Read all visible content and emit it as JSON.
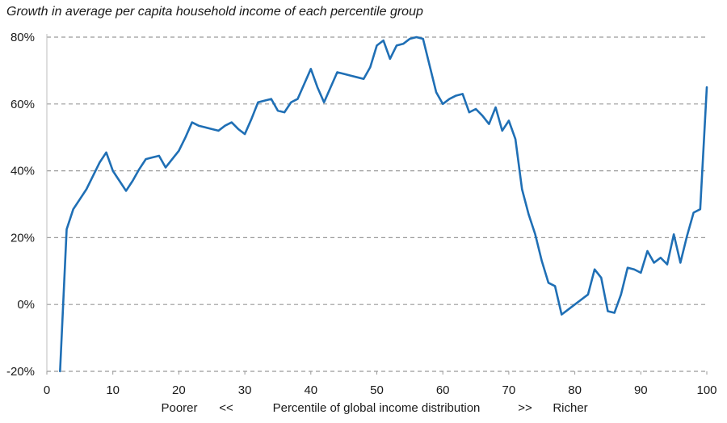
{
  "chart_data": {
    "type": "line",
    "title": "Growth in average per capita household income of each percentile group",
    "xlabel_parts": [
      "Poorer",
      "<<",
      "Percentile of global income distribution",
      ">>",
      "Richer"
    ],
    "ylabel": "",
    "xlim": [
      0,
      100
    ],
    "ylim": [
      -20,
      80
    ],
    "xticks": [
      0,
      10,
      20,
      30,
      40,
      50,
      60,
      70,
      80,
      90,
      100
    ],
    "yticks": [
      -20,
      0,
      20,
      40,
      60,
      80
    ],
    "ytick_labels": [
      "-20%",
      "0%",
      "20%",
      "40%",
      "60%",
      "80%"
    ],
    "grid": "horizontal-dashed",
    "series": [
      {
        "color": "#1f6fb5",
        "x": [
          2,
          3,
          4,
          5,
          6,
          7,
          8,
          9,
          10,
          11,
          12,
          13,
          14,
          15,
          16,
          17,
          18,
          19,
          20,
          21,
          22,
          23,
          24,
          25,
          26,
          27,
          28,
          29,
          30,
          31,
          32,
          33,
          34,
          35,
          36,
          37,
          38,
          39,
          40,
          41,
          42,
          43,
          44,
          45,
          46,
          47,
          48,
          49,
          50,
          51,
          52,
          53,
          54,
          55,
          56,
          57,
          58,
          59,
          60,
          61,
          62,
          63,
          64,
          65,
          66,
          67,
          68,
          69,
          70,
          71,
          72,
          73,
          74,
          75,
          76,
          77,
          78,
          79,
          80,
          81,
          82,
          83,
          84,
          85,
          86,
          87,
          88,
          89,
          90,
          91,
          92,
          93,
          94,
          95,
          96,
          97,
          98,
          99,
          100
        ],
        "values": [
          -20,
          22.5,
          28.5,
          31.5,
          34.5,
          38.5,
          42.5,
          45.5,
          40,
          37,
          34,
          37,
          40.5,
          43.5,
          44,
          44.5,
          41,
          43.5,
          46,
          50,
          54.5,
          53.5,
          53,
          52.5,
          52,
          53.5,
          54.5,
          52.5,
          51,
          55.5,
          60.5,
          61,
          61.5,
          58,
          57.5,
          60.5,
          61.5,
          66,
          70.5,
          65,
          60.5,
          65,
          69.5,
          69,
          68.5,
          68,
          67.5,
          71,
          77.5,
          79,
          73.5,
          77.5,
          78,
          79.5,
          80.5,
          79.5,
          71.5,
          63.5,
          60,
          61.5,
          62.5,
          63,
          57.5,
          58.5,
          56.5,
          54,
          59,
          52,
          55,
          49.5,
          34.5,
          27,
          21,
          13,
          6.5,
          5.5,
          -3,
          -1.5,
          0,
          1.5,
          3,
          10.5,
          8,
          -2,
          -2.5,
          3,
          11,
          10.5,
          9.5,
          16,
          12.5,
          14,
          12,
          21,
          12.5,
          20.5,
          27.5,
          28.5,
          65
        ]
      }
    ]
  }
}
